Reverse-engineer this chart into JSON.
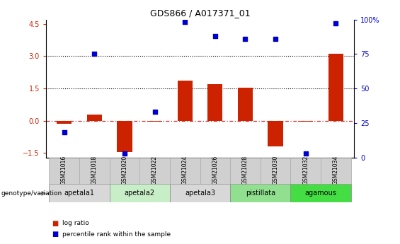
{
  "title": "GDS866 / A017371_01",
  "samples": [
    "GSM21016",
    "GSM21018",
    "GSM21020",
    "GSM21022",
    "GSM21024",
    "GSM21026",
    "GSM21028",
    "GSM21030",
    "GSM21032",
    "GSM21034"
  ],
  "log_ratio": [
    -0.15,
    0.3,
    -1.45,
    -0.05,
    1.85,
    1.7,
    1.55,
    -1.2,
    -0.05,
    3.1
  ],
  "percentile_rank": [
    18,
    75,
    3,
    33,
    98,
    88,
    86,
    86,
    3,
    97
  ],
  "ylim_left": [
    -1.7,
    4.7
  ],
  "ylim_right": [
    0,
    100
  ],
  "hline_y": [
    0.0,
    1.5,
    3.0
  ],
  "hline_styles": [
    "dashdot",
    "dotted",
    "dotted"
  ],
  "hline_colors": [
    "#cc3333",
    "black",
    "black"
  ],
  "bar_color": "#cc2200",
  "dot_color": "#0000cc",
  "yticks_left": [
    -1.5,
    0.0,
    1.5,
    3.0,
    4.5
  ],
  "yticks_right": [
    0,
    25,
    50,
    75,
    100
  ],
  "groups": [
    {
      "label": "apetala1",
      "n": 2,
      "color": "#d8d8d8"
    },
    {
      "label": "apetala2",
      "n": 2,
      "color": "#c8eec8"
    },
    {
      "label": "apetala3",
      "n": 2,
      "color": "#d8d8d8"
    },
    {
      "label": "pistillata",
      "n": 2,
      "color": "#90e090"
    },
    {
      "label": "agamous",
      "n": 2,
      "color": "#44dd44"
    }
  ],
  "genotype_label": "genotype/variation",
  "legend_items": [
    {
      "label": "log ratio",
      "color": "#cc2200"
    },
    {
      "label": "percentile rank within the sample",
      "color": "#0000cc"
    }
  ],
  "fig_width": 5.65,
  "fig_height": 3.45,
  "fig_dpi": 100
}
